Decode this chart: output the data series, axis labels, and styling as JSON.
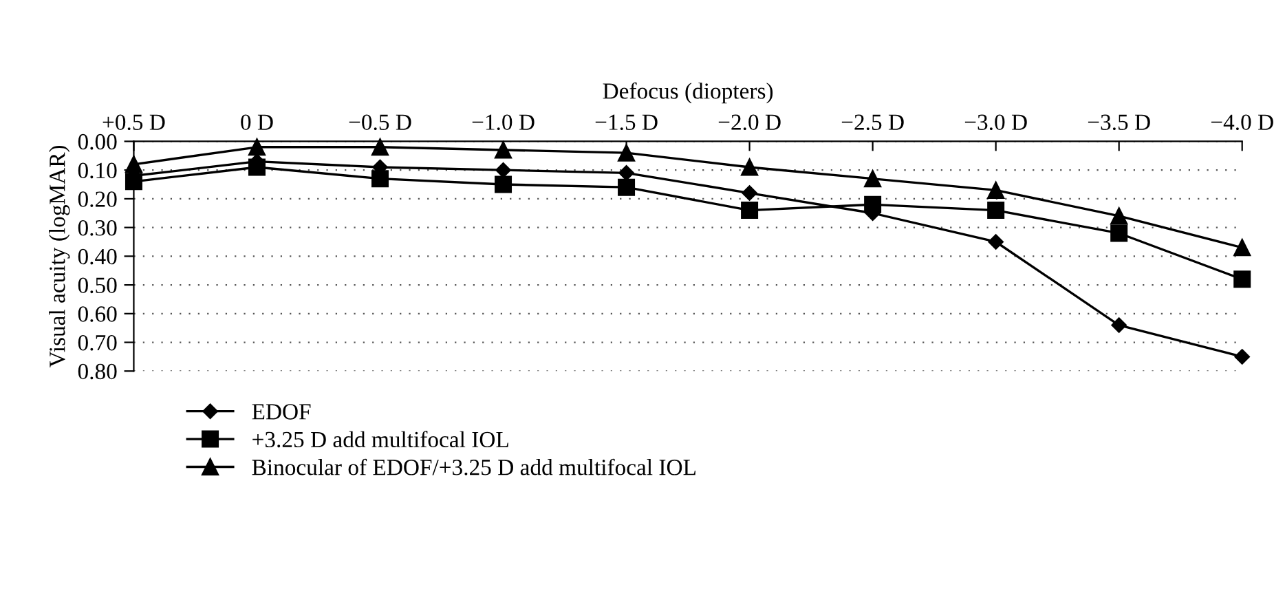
{
  "chart_data": {
    "type": "line",
    "xlabel": "Defocus (diopters)",
    "ylabel": "Visual acuity (logMAR)",
    "categories": [
      "+0.5 D",
      "0 D",
      "−0.5 D",
      "−1.0 D",
      "−1.5 D",
      "−2.0 D",
      "−2.5 D",
      "−3.0 D",
      "−3.5 D",
      "−4.0 D"
    ],
    "series": [
      {
        "name": "EDOF",
        "color": "#000000",
        "marker": "diamond",
        "values": [
          0.12,
          0.07,
          0.09,
          0.1,
          0.11,
          0.18,
          0.25,
          0.35,
          0.64,
          0.75
        ]
      },
      {
        "name": "+3.25 D add multifocal IOL",
        "color": "#000000",
        "marker": "square",
        "values": [
          0.14,
          0.09,
          0.13,
          0.15,
          0.16,
          0.24,
          0.22,
          0.24,
          0.32,
          0.48
        ]
      },
      {
        "name": "Binocular of EDOF/+3.25 D add multifocal IOL",
        "color": "#000000",
        "marker": "triangle",
        "values": [
          0.08,
          0.02,
          0.02,
          0.03,
          0.04,
          0.09,
          0.13,
          0.17,
          0.26,
          0.37
        ]
      }
    ],
    "ylim": [
      0.8,
      0.0
    ],
    "yticks": [
      {
        "value": 0.0,
        "label": "0.00"
      },
      {
        "value": 0.1,
        "label": "0.10"
      },
      {
        "value": 0.2,
        "label": "0.20"
      },
      {
        "value": 0.3,
        "label": "0.30"
      },
      {
        "value": 0.4,
        "label": "0.40"
      },
      {
        "value": 0.5,
        "label": "0.50"
      },
      {
        "value": 0.6,
        "label": "0.60"
      },
      {
        "value": 0.7,
        "label": "0.70"
      },
      {
        "value": 0.8,
        "label": "0.80"
      }
    ],
    "grid": "y",
    "legend": "bottom left",
    "line_style": "solid"
  }
}
